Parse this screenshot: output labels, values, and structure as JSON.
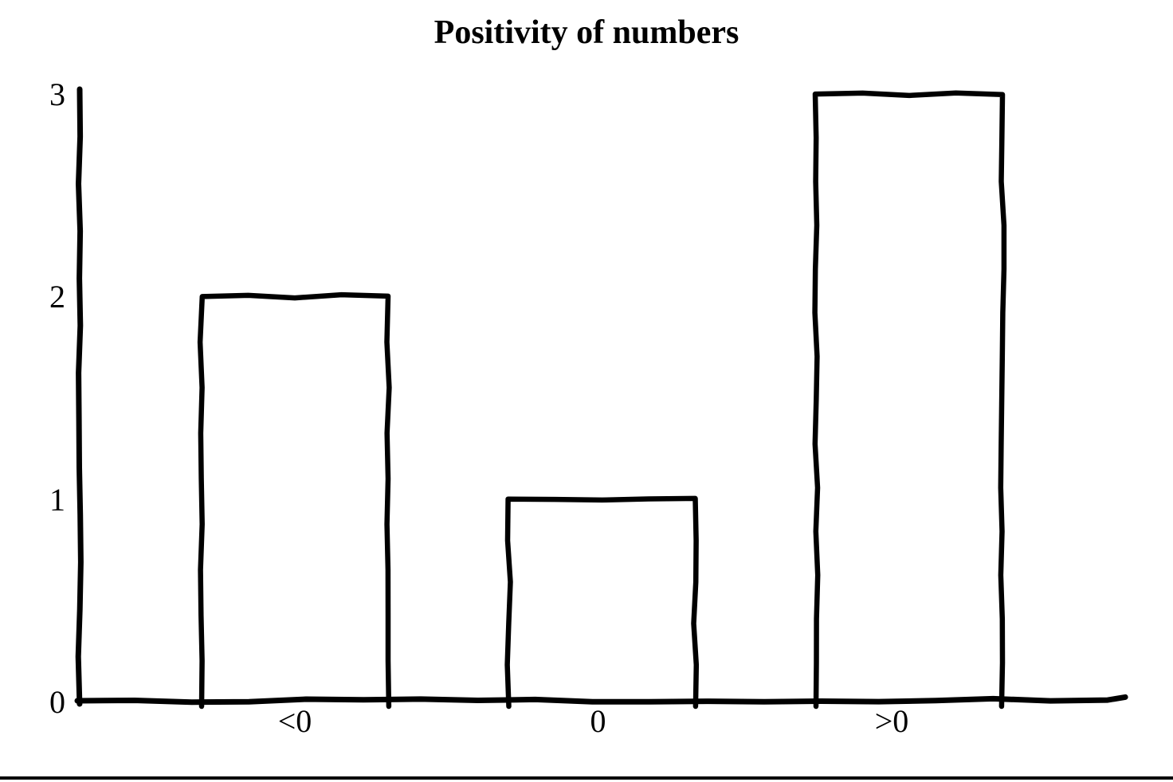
{
  "page": {
    "background": "#ffffff",
    "ink_color": "#000000"
  },
  "chart_data": {
    "type": "bar",
    "title": "Positivity of numbers",
    "categories": [
      "<0",
      "0",
      ">0"
    ],
    "values": [
      2,
      1,
      3
    ],
    "xlabel": "",
    "ylabel": "",
    "ylim": [
      0,
      3
    ],
    "yticks": [
      0,
      1,
      2,
      3
    ],
    "grid": false,
    "legend": null,
    "bar_fill": "#ffffff",
    "bar_outline": "#000000",
    "style": "hand-drawn sketch, unfilled black outline bars on white"
  }
}
